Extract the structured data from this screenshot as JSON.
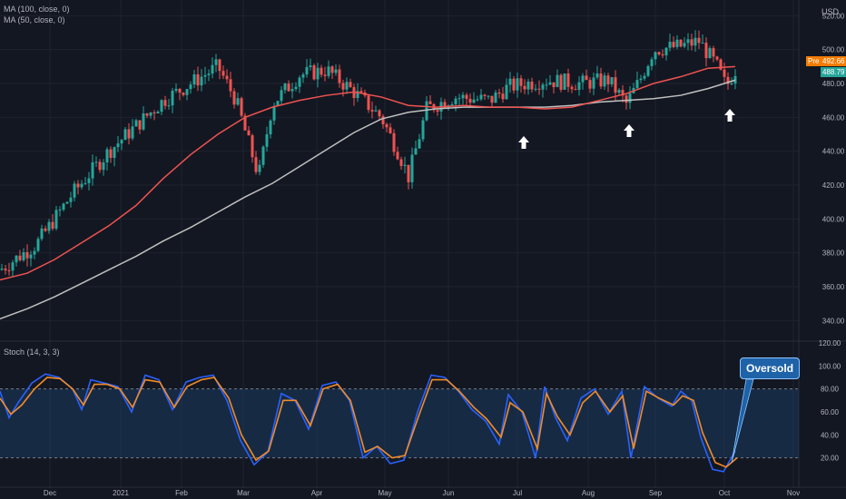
{
  "legend": {
    "ma100": "MA (100, close, 0)",
    "ma50": "MA (50, close, 0)",
    "stoch": "Stoch (14, 3, 3)"
  },
  "currency": "USD",
  "price_badges": {
    "pre_label": "Pre",
    "pre_value": "492.66",
    "last_value": "488.79"
  },
  "annotation": "Oversold",
  "colors": {
    "background": "#131722",
    "up": "#26a69a",
    "down": "#ef5350",
    "ma50": "#ef5350",
    "ma100": "#c0c0c0",
    "stoch_k": "#2962ff",
    "stoch_d": "#f28c28",
    "stoch_band": "#1c3a5e",
    "callout": "#1e62a8"
  },
  "chart_data": [
    {
      "type": "candlestick",
      "y_ticks": [
        340,
        360,
        380,
        400,
        420,
        440,
        460,
        480,
        500,
        520
      ],
      "ylim": [
        330,
        525
      ],
      "x_labels": [
        "Dec",
        "2021",
        "Feb",
        "Mar",
        "Apr",
        "May",
        "Jun",
        "Jul",
        "Aug",
        "Sep",
        "Oct",
        "Nov"
      ],
      "series_ma50": [
        [
          0,
          364
        ],
        [
          30,
          368
        ],
        [
          60,
          376
        ],
        [
          90,
          386
        ],
        [
          120,
          396
        ],
        [
          150,
          408
        ],
        [
          180,
          424
        ],
        [
          210,
          438
        ],
        [
          240,
          450
        ],
        [
          270,
          460
        ],
        [
          300,
          466
        ],
        [
          330,
          470
        ],
        [
          360,
          473
        ],
        [
          390,
          475
        ],
        [
          420,
          472
        ],
        [
          450,
          467
        ],
        [
          480,
          466
        ],
        [
          510,
          467
        ],
        [
          540,
          466
        ],
        [
          570,
          466
        ],
        [
          600,
          465
        ],
        [
          630,
          466
        ],
        [
          660,
          470
        ],
        [
          690,
          474
        ],
        [
          720,
          480
        ],
        [
          750,
          484
        ],
        [
          780,
          489
        ],
        [
          810,
          490
        ]
      ],
      "series_ma100": [
        [
          0,
          341
        ],
        [
          30,
          347
        ],
        [
          60,
          354
        ],
        [
          90,
          362
        ],
        [
          120,
          370
        ],
        [
          150,
          378
        ],
        [
          180,
          387
        ],
        [
          210,
          395
        ],
        [
          240,
          404
        ],
        [
          270,
          413
        ],
        [
          300,
          421
        ],
        [
          330,
          431
        ],
        [
          360,
          441
        ],
        [
          390,
          451
        ],
        [
          420,
          459
        ],
        [
          450,
          463
        ],
        [
          480,
          465
        ],
        [
          510,
          466
        ],
        [
          540,
          466
        ],
        [
          570,
          466
        ],
        [
          600,
          466
        ],
        [
          630,
          467
        ],
        [
          660,
          469
        ],
        [
          690,
          470
        ],
        [
          720,
          471
        ],
        [
          750,
          473
        ],
        [
          780,
          477
        ],
        [
          810,
          482
        ]
      ],
      "annotations": [
        "up-arrow",
        "up-arrow",
        "up-arrow"
      ]
    },
    {
      "type": "line",
      "title": "Stoch (14, 3, 3)",
      "y_ticks": [
        20,
        40,
        60,
        80,
        100,
        120
      ],
      "ylim": [
        0,
        120
      ],
      "bands": [
        20,
        80
      ],
      "series": [
        {
          "values": [
            [
              0,
              78
            ],
            [
              10,
              55
            ],
            [
              20,
              68
            ],
            [
              35,
              85
            ],
            [
              50,
              93
            ],
            [
              65,
              90
            ],
            [
              80,
              80
            ],
            [
              90,
              62
            ],
            [
              100,
              88
            ],
            [
              115,
              85
            ],
            [
              130,
              82
            ],
            [
              145,
              60
            ],
            [
              160,
              92
            ],
            [
              175,
              88
            ],
            [
              190,
              62
            ],
            [
              205,
              86
            ],
            [
              220,
              90
            ],
            [
              235,
              92
            ],
            [
              250,
              70
            ],
            [
              265,
              35
            ],
            [
              280,
              14
            ],
            [
              295,
              25
            ],
            [
              310,
              76
            ],
            [
              325,
              70
            ],
            [
              340,
              45
            ],
            [
              355,
              83
            ],
            [
              370,
              86
            ],
            [
              385,
              70
            ],
            [
              400,
              20
            ],
            [
              415,
              30
            ],
            [
              430,
              15
            ],
            [
              445,
              18
            ],
            [
              460,
              60
            ],
            [
              475,
              92
            ],
            [
              490,
              90
            ],
            [
              505,
              78
            ],
            [
              520,
              62
            ],
            [
              535,
              52
            ],
            [
              550,
              32
            ],
            [
              560,
              75
            ],
            [
              575,
              60
            ],
            [
              590,
              20
            ],
            [
              600,
              82
            ],
            [
              612,
              55
            ],
            [
              625,
              35
            ],
            [
              640,
              72
            ],
            [
              655,
              80
            ],
            [
              670,
              58
            ],
            [
              685,
              78
            ],
            [
              695,
              20
            ],
            [
              710,
              82
            ],
            [
              725,
              72
            ],
            [
              740,
              65
            ],
            [
              750,
              78
            ],
            [
              762,
              70
            ],
            [
              772,
              38
            ],
            [
              785,
              10
            ],
            [
              797,
              8
            ],
            [
              810,
              26
            ]
          ]
        },
        {
          "values": [
            [
              0,
              72
            ],
            [
              12,
              58
            ],
            [
              24,
              66
            ],
            [
              38,
              80
            ],
            [
              52,
              90
            ],
            [
              66,
              89
            ],
            [
              80,
              80
            ],
            [
              92,
              66
            ],
            [
              104,
              84
            ],
            [
              118,
              84
            ],
            [
              132,
              80
            ],
            [
              146,
              64
            ],
            [
              160,
              88
            ],
            [
              176,
              86
            ],
            [
              192,
              64
            ],
            [
              206,
              82
            ],
            [
              222,
              88
            ],
            [
              236,
              90
            ],
            [
              252,
              72
            ],
            [
              266,
              40
            ],
            [
              282,
              18
            ],
            [
              296,
              26
            ],
            [
              312,
              70
            ],
            [
              326,
              70
            ],
            [
              342,
              48
            ],
            [
              356,
              80
            ],
            [
              372,
              84
            ],
            [
              386,
              70
            ],
            [
              402,
              25
            ],
            [
              416,
              30
            ],
            [
              432,
              20
            ],
            [
              446,
              22
            ],
            [
              462,
              58
            ],
            [
              476,
              88
            ],
            [
              492,
              88
            ],
            [
              506,
              78
            ],
            [
              522,
              64
            ],
            [
              536,
              54
            ],
            [
              552,
              38
            ],
            [
              562,
              68
            ],
            [
              576,
              60
            ],
            [
              592,
              28
            ],
            [
              602,
              76
            ],
            [
              614,
              56
            ],
            [
              628,
              40
            ],
            [
              642,
              68
            ],
            [
              656,
              78
            ],
            [
              672,
              60
            ],
            [
              686,
              74
            ],
            [
              698,
              28
            ],
            [
              712,
              78
            ],
            [
              726,
              72
            ],
            [
              742,
              66
            ],
            [
              752,
              74
            ],
            [
              764,
              70
            ],
            [
              774,
              42
            ],
            [
              788,
              16
            ],
            [
              800,
              12
            ],
            [
              812,
              20
            ]
          ]
        }
      ]
    }
  ]
}
